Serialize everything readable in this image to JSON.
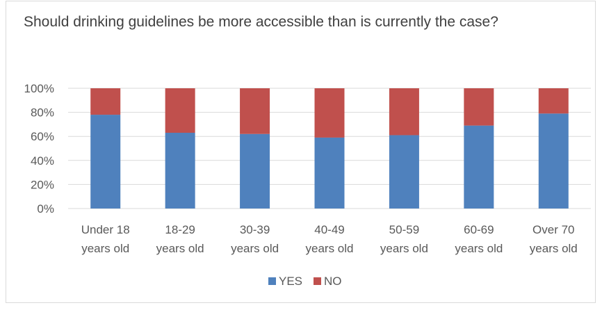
{
  "chart_data": {
    "type": "bar",
    "stacked": true,
    "percent_stacked": true,
    "title": "Should drinking guidelines be more accessible than is currently the case?",
    "categories": [
      [
        "Under 18",
        "years old"
      ],
      [
        "18-29",
        "years old"
      ],
      [
        "30-39",
        "years old"
      ],
      [
        "40-49",
        "years old"
      ],
      [
        "50-59",
        "years old"
      ],
      [
        "60-69",
        "years old"
      ],
      [
        "Over 70",
        "years old"
      ]
    ],
    "series": [
      {
        "name": "YES",
        "color": "#4f81bd",
        "values": [
          78,
          63,
          62,
          59,
          61,
          69,
          79
        ]
      },
      {
        "name": "NO",
        "color": "#c0504d",
        "values": [
          22,
          37,
          38,
          41,
          39,
          31,
          21
        ]
      }
    ],
    "ylim": [
      0,
      100
    ],
    "yticks": [
      "0%",
      "20%",
      "40%",
      "60%",
      "80%",
      "100%"
    ],
    "grid": true,
    "legend_position": "bottom"
  }
}
